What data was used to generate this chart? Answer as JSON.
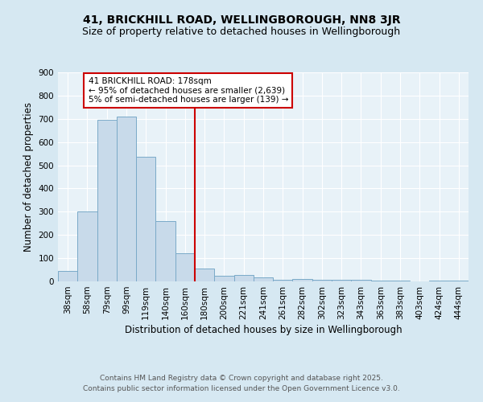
{
  "title": "41, BRICKHILL ROAD, WELLINGBOROUGH, NN8 3JR",
  "subtitle": "Size of property relative to detached houses in Wellingborough",
  "xlabel": "Distribution of detached houses by size in Wellingborough",
  "ylabel": "Number of detached properties",
  "categories": [
    "38sqm",
    "58sqm",
    "79sqm",
    "99sqm",
    "119sqm",
    "140sqm",
    "160sqm",
    "180sqm",
    "200sqm",
    "221sqm",
    "241sqm",
    "261sqm",
    "282sqm",
    "302sqm",
    "323sqm",
    "343sqm",
    "363sqm",
    "383sqm",
    "403sqm",
    "424sqm",
    "444sqm"
  ],
  "values": [
    45,
    300,
    695,
    710,
    535,
    260,
    120,
    55,
    25,
    28,
    18,
    7,
    10,
    8,
    7,
    6,
    4,
    3,
    1,
    5,
    4
  ],
  "bar_color": "#c8daea",
  "bar_edge_color": "#7aaac8",
  "vline_color": "#cc0000",
  "annotation_text": "41 BRICKHILL ROAD: 178sqm\n← 95% of detached houses are smaller (2,639)\n5% of semi-detached houses are larger (139) →",
  "annotation_box_facecolor": "#ffffff",
  "annotation_box_edgecolor": "#cc0000",
  "ylim": [
    0,
    900
  ],
  "yticks": [
    0,
    100,
    200,
    300,
    400,
    500,
    600,
    700,
    800,
    900
  ],
  "footnote1": "Contains HM Land Registry data © Crown copyright and database right 2025.",
  "footnote2": "Contains public sector information licensed under the Open Government Licence v3.0.",
  "background_color": "#d6e8f2",
  "plot_bg_color": "#e8f2f8",
  "grid_color": "#ffffff",
  "title_fontsize": 10,
  "subtitle_fontsize": 9,
  "axis_label_fontsize": 8.5,
  "tick_fontsize": 7.5,
  "annotation_fontsize": 7.5,
  "footnote_fontsize": 6.5
}
